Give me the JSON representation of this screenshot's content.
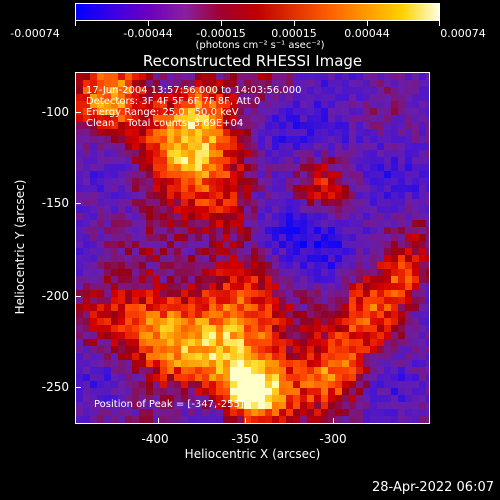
{
  "colorbar": {
    "tick_labels": [
      "-0.00074",
      "-0.00044",
      "-0.00015",
      "0.00015",
      "0.00044",
      "0.00074"
    ],
    "units": "(photons cm⁻² s⁻¹ asec⁻²)",
    "range": [
      -0.00074,
      0.00074
    ]
  },
  "plot": {
    "title": "Reconstructed RHESSI Image",
    "info_lines": [
      "17-Jun-2004 13:57:56.000 to 14:03:56.000",
      "Detectors: 3F 4F 5F 6F 7F 8F, Att 0",
      "Energy Range: 25.0 - 50.0 keV",
      "Clean    Total counts: 3.69E+04"
    ],
    "peak_text": "Position of Peak = [-347,-255]",
    "x_axis_title": "Heliocentric X (arcsec)",
    "y_axis_title": "Heliocentric Y (arcsec)",
    "x_tick_labels": [
      "-400",
      "-350",
      "-300"
    ],
    "y_tick_labels": [
      "-100",
      "-150",
      "-200",
      "-250"
    ]
  },
  "chart_data": {
    "type": "heatmap",
    "title": "Reconstructed RHESSI Image",
    "xlabel": "Heliocentric X (arcsec)",
    "ylabel": "Heliocentric Y (arcsec)",
    "xlim": [
      -446,
      -344
    ],
    "ylim": [
      -272,
      -72
    ],
    "x_ticks": [
      -400,
      -350,
      -300
    ],
    "y_ticks": [
      -100,
      -150,
      -200,
      -250
    ],
    "color_range": [
      -0.00074,
      0.00074
    ],
    "peak_position": [
      -347,
      -255
    ],
    "colors": {
      "negative": "#0000ff",
      "mid_negative": "#6b00bf",
      "mid_positive": "#c00000",
      "high": "#ff9a00",
      "max": "#ffffe0"
    }
  },
  "footer": {
    "timestamp": "28-Apr-2022 06:07"
  }
}
